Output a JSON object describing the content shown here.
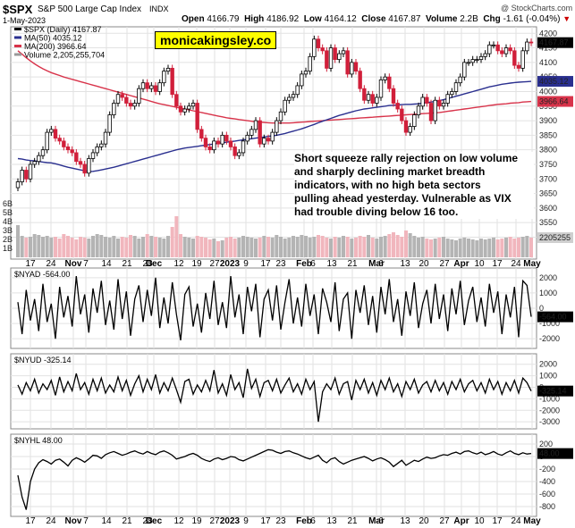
{
  "header": {
    "ticker": "$SPX",
    "name": "S&P 500 Large Cap Index",
    "exchange": "INDX",
    "date": "1-May-2023",
    "open_label": "Open",
    "open": "4166.79",
    "high_label": "High",
    "high": "4186.92",
    "low_label": "Low",
    "low": "4164.12",
    "close_label": "Close",
    "close": "4167.87",
    "volume_label": "Volume",
    "volume": "2.2B",
    "chg_label": "Chg",
    "chg": "-1.61 (-0.04%)",
    "copyright": "@ StockCharts.com"
  },
  "watermark": "monicakingsley.co",
  "annotation": [
    "Short squeeze rally rejection on low volume",
    "and sharply declining market breadth",
    "indicators, with no high beta sectors",
    "pulling ahead yesterday. Vulnerable as VIX",
    "had trouble diving below 16 too."
  ],
  "chart_data": [
    {
      "type": "candlestick",
      "title": "$SPX (Daily) 4167.87",
      "legend": [
        {
          "label": "$SPX (Daily) 4167.87",
          "color": "#000000"
        },
        {
          "label": "MA(50) 4035.12",
          "color": "#2a2f8f"
        },
        {
          "label": "MA(200) 3966.64",
          "color": "#d8334a"
        },
        {
          "label": "Volume 2,205,255,704",
          "color": "#9a9a9a"
        }
      ],
      "y_ticks": [
        "4200",
        "4150",
        "4100",
        "4050",
        "4000",
        "3950",
        "3900",
        "3850",
        "3800",
        "3750",
        "3700",
        "3650",
        "3600",
        "3550",
        "3500"
      ],
      "ylim": [
        3480,
        4210
      ],
      "volume_ticks": [
        "6B",
        "5B",
        "4B",
        "3B",
        "2B",
        "1B"
      ],
      "last_labels": {
        "price": "4167.87",
        "ma50": "4035.12",
        "ma200": "3966.64",
        "volume": "2205255"
      },
      "close": [
        3690,
        3730,
        3700,
        3750,
        3760,
        3780,
        3800,
        3860,
        3870,
        3840,
        3830,
        3810,
        3800,
        3790,
        3760,
        3750,
        3720,
        3770,
        3790,
        3810,
        3820,
        3860,
        3920,
        3960,
        3990,
        3980,
        3960,
        3950,
        3960,
        4010,
        4030,
        4010,
        4020,
        4000,
        4030,
        4070,
        4080,
        3990,
        3950,
        3930,
        3940,
        3950,
        3960,
        3870,
        3840,
        3810,
        3800,
        3830,
        3820,
        3850,
        3830,
        3810,
        3780,
        3790,
        3830,
        3850,
        3870,
        3900,
        3820,
        3840,
        3830,
        3860,
        3900,
        3930,
        3970,
        3980,
        3990,
        4020,
        4060,
        4070,
        4120,
        4180,
        4150,
        4140,
        4080,
        4150,
        4110,
        4130,
        4140,
        4060,
        4100,
        4070,
        4010,
        3970,
        3990,
        3960,
        3980,
        4040,
        4050,
        4010,
        3960,
        3940,
        3900,
        3860,
        3880,
        3920,
        3950,
        3980,
        3960,
        3900,
        3970,
        3950,
        3960,
        3990,
        4000,
        4030,
        4050,
        4100,
        4100,
        4110,
        4110,
        4120,
        4130,
        4160,
        4160,
        4140,
        4130,
        4150,
        4140,
        4090,
        4080,
        4140,
        4170,
        4168
      ],
      "ma50": [
        3770,
        3768,
        3765,
        3763,
        3762,
        3760,
        3758,
        3756,
        3755,
        3752,
        3748,
        3744,
        3740,
        3737,
        3734,
        3731,
        3728,
        3725,
        3726,
        3728,
        3731,
        3734,
        3737,
        3740,
        3744,
        3748,
        3752,
        3756,
        3760,
        3764,
        3768,
        3772,
        3776,
        3780,
        3784,
        3788,
        3792,
        3796,
        3800,
        3803,
        3806,
        3808,
        3810,
        3812,
        3814,
        3816,
        3818,
        3820,
        3822,
        3824,
        3826,
        3828,
        3830,
        3832,
        3834,
        3836,
        3838,
        3840,
        3842,
        3844,
        3846,
        3848,
        3850,
        3853,
        3856,
        3860,
        3864,
        3868,
        3872,
        3877,
        3882,
        3887,
        3893,
        3898,
        3903,
        3908,
        3913,
        3918,
        3922,
        3926,
        3930,
        3934,
        3937,
        3940,
        3942,
        3944,
        3946,
        3948,
        3950,
        3952,
        3953,
        3954,
        3955,
        3956,
        3956,
        3957,
        3958,
        3960,
        3962,
        3964,
        3966,
        3969,
        3972,
        3976,
        3980,
        3984,
        3988,
        3992,
        3996,
        4000,
        4004,
        4008,
        4012,
        4016,
        4019,
        4022,
        4025,
        4027,
        4029,
        4031,
        4032,
        4033,
        4034,
        4035
      ],
      "ma200": [
        4140,
        4128,
        4116,
        4105,
        4095,
        4086,
        4078,
        4071,
        4065,
        4060,
        4055,
        4050,
        4046,
        4042,
        4038,
        4034,
        4030,
        4026,
        4022,
        4018,
        4014,
        4010,
        4006,
        4002,
        3998,
        3994,
        3990,
        3986,
        3982,
        3978,
        3974,
        3970,
        3966,
        3962,
        3958,
        3955,
        3952,
        3949,
        3946,
        3943,
        3940,
        3937,
        3934,
        3931,
        3928,
        3925,
        3922,
        3919,
        3916,
        3913,
        3910,
        3908,
        3906,
        3904,
        3902,
        3900,
        3898,
        3896,
        3895,
        3894,
        3893,
        3892,
        3892,
        3892,
        3892,
        3892,
        3893,
        3894,
        3895,
        3896,
        3897,
        3898,
        3899,
        3900,
        3901,
        3902,
        3903,
        3904,
        3905,
        3906,
        3907,
        3908,
        3909,
        3910,
        3911,
        3912,
        3913,
        3914,
        3915,
        3916,
        3917,
        3918,
        3919,
        3920,
        3921,
        3922,
        3923,
        3924,
        3925,
        3926,
        3927,
        3928,
        3930,
        3932,
        3934,
        3936,
        3938,
        3940,
        3942,
        3944,
        3946,
        3948,
        3950,
        3952,
        3954,
        3956,
        3957,
        3958,
        3960,
        3961,
        3962,
        3964,
        3965,
        3966
      ],
      "volume_B": [
        3.6,
        2.4,
        2.2,
        2.3,
        2.6,
        2.5,
        2.3,
        2.4,
        2.2,
        2.3,
        2.1,
        2.6,
        2.4,
        2.2,
        2.0,
        2.3,
        2.2,
        2.1,
        2.4,
        2.6,
        2.5,
        2.3,
        2.2,
        2.4,
        2.1,
        2.3,
        2.2,
        2.5,
        2.4,
        2.1,
        2.3,
        2.6,
        2.4,
        2.3,
        2.2,
        2.1,
        2.4,
        3.4,
        4.6,
        2.6,
        2.3,
        2.2,
        2.1,
        2.4,
        2.3,
        2.2,
        2.0,
        2.1,
        1.8,
        1.9,
        2.2,
        2.3,
        2.1,
        2.2,
        2.4,
        2.3,
        2.2,
        2.1,
        2.2,
        2.4,
        2.3,
        2.2,
        2.5,
        2.3,
        2.1,
        2.2,
        2.4,
        2.3,
        2.5,
        2.4,
        2.2,
        2.3,
        2.5,
        2.4,
        2.2,
        2.1,
        2.3,
        2.2,
        2.4,
        2.3,
        2.1,
        2.2,
        2.4,
        2.3,
        2.5,
        2.2,
        2.1,
        2.3,
        2.4,
        2.6,
        2.8,
        2.5,
        2.3,
        3.0,
        2.7,
        2.4,
        2.2,
        2.3,
        2.1,
        2.0,
        2.1,
        2.2,
        2.3,
        2.1,
        2.0,
        1.9,
        2.1,
        2.2,
        2.1,
        2.0,
        1.9,
        2.1,
        2.0,
        2.1,
        2.2,
        2.0,
        2.1,
        2.2,
        2.3,
        2.1,
        2.2,
        2.3,
        2.4,
        2.2
      ]
    },
    {
      "type": "line",
      "title": "$NYAD -564.00",
      "y_ticks": [
        "2000",
        "1000",
        "0",
        "-1000",
        "-2000"
      ],
      "ylim": [
        -2400,
        2400
      ],
      "last_label": "-564.00",
      "values": [
        400,
        -1700,
        1200,
        -800,
        600,
        -1500,
        1600,
        -900,
        300,
        -2000,
        1400,
        -600,
        800,
        -1200,
        2100,
        -400,
        900,
        -1600,
        1300,
        -300,
        1800,
        -1100,
        500,
        -1400,
        1900,
        -700,
        1100,
        -1800,
        600,
        1500,
        -900,
        1200,
        -500,
        2000,
        -1300,
        700,
        -1000,
        1700,
        -400,
        -2100,
        900,
        1400,
        -1200,
        300,
        -1600,
        1000,
        -700,
        1800,
        -1100,
        400,
        -1300,
        2100,
        -600,
        900,
        -1700,
        1400,
        -200,
        1600,
        -1900,
        600,
        1200,
        -800,
        1500,
        -1400,
        400,
        1900,
        -1000,
        700,
        -1200,
        1600,
        -500,
        900,
        -1700,
        1300,
        400,
        -900,
        1700,
        -1500,
        600,
        1000,
        -2000,
        1200,
        -300,
        1500,
        -1100,
        800,
        -1600,
        1400,
        -400,
        1900,
        -900,
        600,
        -1800,
        1100,
        -500,
        1700,
        -1300,
        300,
        1200,
        -1000,
        1600,
        -700,
        900,
        -1500,
        1300,
        -400,
        1800,
        -1100,
        500,
        1400,
        -900,
        700,
        -1200,
        1600,
        -300,
        1100,
        -1700,
        900,
        -600,
        1400,
        -1900,
        1800,
        1500,
        -564
      ]
    },
    {
      "type": "line",
      "title": "$NYUD -325.14",
      "y_ticks": [
        "2000",
        "1000",
        "0",
        "-1000",
        "-2000",
        "-3000"
      ],
      "ylim": [
        -3300,
        2600
      ],
      "last_label": "-325.14",
      "values": [
        200,
        -600,
        400,
        -300,
        700,
        -500,
        300,
        -200,
        600,
        -700,
        900,
        -400,
        500,
        -300,
        1200,
        -200,
        400,
        -600,
        700,
        -300,
        800,
        -500,
        200,
        -400,
        900,
        -300,
        600,
        -700,
        300,
        1000,
        -400,
        700,
        -200,
        1100,
        -500,
        400,
        -300,
        800,
        -200,
        -1300,
        500,
        700,
        -600,
        200,
        -400,
        600,
        -300,
        1500,
        -500,
        300,
        -700,
        1100,
        -200,
        400,
        -900,
        1600,
        -100,
        700,
        -800,
        400,
        600,
        -300,
        700,
        -500,
        200,
        800,
        -400,
        300,
        -600,
        700,
        -200,
        500,
        -3000,
        -400,
        300,
        -200,
        800,
        -600,
        300,
        500,
        -1100,
        600,
        -200,
        700,
        -500,
        400,
        -700,
        600,
        -200,
        800,
        -400,
        300,
        -800,
        500,
        -200,
        700,
        -500,
        200,
        500,
        -400,
        600,
        -300,
        400,
        -600,
        500,
        -200,
        700,
        -400,
        300,
        600,
        -300,
        400,
        -500,
        700,
        -200,
        500,
        -600,
        400,
        -300,
        600,
        -500,
        800,
        400,
        -325
      ]
    },
    {
      "type": "line",
      "title": "$NYHL 48.00",
      "y_ticks": [
        "200",
        "0",
        "-200",
        "-400",
        "-600",
        "-800"
      ],
      "ylim": [
        -900,
        300
      ],
      "last_label": "48.00",
      "values": [
        -300,
        -650,
        -850,
        -400,
        -200,
        -100,
        -50,
        -80,
        -120,
        -60,
        -40,
        -90,
        -150,
        -60,
        -20,
        -50,
        -90,
        -40,
        20,
        10,
        -30,
        30,
        60,
        80,
        50,
        20,
        40,
        70,
        90,
        60,
        40,
        80,
        50,
        30,
        70,
        90,
        60,
        20,
        -40,
        -20,
        0,
        30,
        50,
        20,
        -30,
        -60,
        -80,
        -40,
        -20,
        -50,
        -30,
        0,
        -10,
        -50,
        -70,
        -40,
        -10,
        20,
        50,
        80,
        110,
        100,
        70,
        50,
        80,
        90,
        60,
        40,
        10,
        -20,
        -40,
        -10,
        20,
        -60,
        -100,
        -40,
        -20,
        -80,
        -120,
        -90,
        -60,
        -40,
        -20,
        0,
        -30,
        -70,
        -40,
        -20,
        -50,
        -90,
        -160,
        -110,
        -60,
        -140,
        -100,
        -60,
        -80,
        -40,
        -10,
        -30,
        -20,
        10,
        30,
        20,
        50,
        70,
        40,
        80,
        90,
        60,
        40,
        70,
        30,
        50,
        80,
        40,
        20,
        60,
        90,
        50,
        30,
        60,
        40,
        48
      ]
    }
  ],
  "x_axis": {
    "labels": [
      "17",
      "24",
      "Nov",
      "7",
      "14",
      "21",
      "28",
      "Dec",
      "12",
      "19",
      "27",
      "2023",
      "9",
      "17",
      "23",
      "Feb",
      "6",
      "13",
      "21",
      "Mar",
      "6",
      "13",
      "20",
      "27",
      "Apr",
      "10",
      "17",
      "24",
      "May"
    ],
    "bold": [
      "Nov",
      "Dec",
      "2023",
      "Feb",
      "Mar",
      "Apr",
      "May"
    ],
    "positions": [
      34,
      57,
      82,
      96,
      119,
      142,
      165,
      172,
      200,
      220,
      240,
      257,
      275,
      297,
      314,
      340,
      350,
      371,
      394,
      421,
      426,
      453,
      474,
      497,
      516,
      536,
      556,
      577,
      595
    ]
  }
}
